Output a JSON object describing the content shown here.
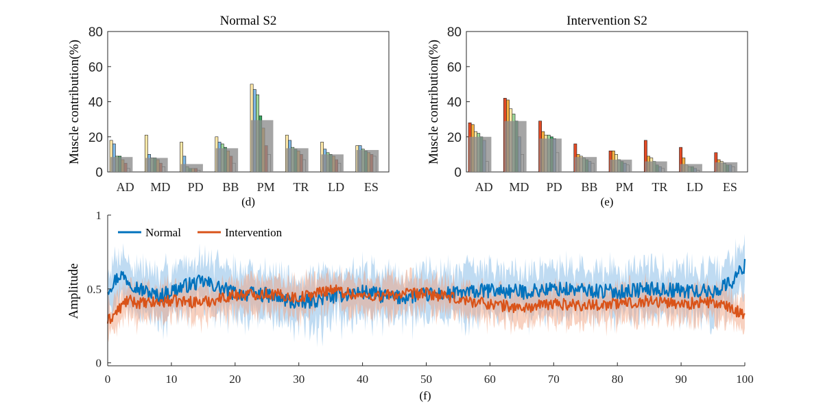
{
  "chart_data": [
    {
      "id": "d",
      "type": "bar",
      "title": "Normal S2",
      "caption": "(d)",
      "ylabel": "Muscle contribution(%)",
      "xlabel": "",
      "ylim": [
        0,
        80
      ],
      "yticks": [
        0,
        20,
        40,
        60,
        80
      ],
      "categories": [
        "AD",
        "MD",
        "PD",
        "BB",
        "PM",
        "TR",
        "LD",
        "ES"
      ],
      "group_mean": [
        8.5,
        8.0,
        4.5,
        13.5,
        29.5,
        13.5,
        10.0,
        12.5
      ],
      "bars": [
        [
          18,
          16,
          9,
          9,
          7,
          5,
          2
        ],
        [
          21,
          10,
          8,
          8,
          7,
          5,
          3
        ],
        [
          17,
          9,
          3,
          2,
          2,
          2,
          1
        ],
        [
          20,
          17,
          16,
          14,
          12,
          9,
          5
        ],
        [
          50,
          47,
          44,
          32,
          25,
          15,
          10
        ],
        [
          21,
          18,
          14,
          13,
          12,
          10,
          7
        ],
        [
          17,
          13,
          11,
          10,
          9,
          7,
          5
        ],
        [
          15,
          15,
          13,
          12,
          11,
          10,
          9
        ]
      ],
      "bar_colors": [
        "#FFE9A8",
        "#7FB8E6",
        "#9ED89A",
        "#35A35F",
        "#F5B041",
        "#E34B26",
        "#FFFFFF"
      ],
      "mean_color": "#8C8C8C"
    },
    {
      "id": "e",
      "type": "bar",
      "title": "Intervention S2",
      "caption": "(e)",
      "ylabel": "Muscle contribution(%)",
      "xlabel": "",
      "ylim": [
        0,
        80
      ],
      "yticks": [
        0,
        20,
        40,
        60,
        80
      ],
      "categories": [
        "AD",
        "MD",
        "PD",
        "BB",
        "PM",
        "TR",
        "LD",
        "ES"
      ],
      "group_mean": [
        20.0,
        29.0,
        19.0,
        8.5,
        7.0,
        6.0,
        4.5,
        5.5
      ],
      "bars": [
        [
          28,
          27,
          23,
          22,
          20,
          18,
          6
        ],
        [
          42,
          41,
          36,
          33,
          29,
          20,
          10
        ],
        [
          29,
          23,
          21,
          21,
          20,
          19,
          11
        ],
        [
          16,
          10,
          9,
          8,
          7,
          6,
          5
        ],
        [
          12,
          12,
          10,
          7,
          6,
          5,
          4
        ],
        [
          18,
          9,
          8,
          6,
          4,
          3,
          2
        ],
        [
          14,
          8,
          4,
          3,
          3,
          2,
          1
        ],
        [
          11,
          7,
          6,
          5,
          4,
          4,
          3
        ]
      ],
      "bar_colors": [
        "#E34B26",
        "#F5B041",
        "#FFE9A8",
        "#9ED89A",
        "#35A35F",
        "#7FB8E6",
        "#FFFFFF"
      ],
      "mean_color": "#8C8C8C"
    },
    {
      "id": "f",
      "type": "line",
      "title": "",
      "caption": "(f)",
      "ylabel": "Amplitude",
      "xlabel": "",
      "xlim": [
        0,
        100
      ],
      "xticks": [
        0,
        10,
        20,
        30,
        40,
        50,
        60,
        70,
        80,
        90,
        100
      ],
      "ylim": [
        -0.02,
        1.0
      ],
      "ytick_values": [
        0,
        0.5,
        1
      ],
      "ytick_labels": [
        "0",
        "0.5",
        "1"
      ],
      "legend_position": "top-left",
      "series": [
        {
          "name": "Normal",
          "color": "#0072BD",
          "band_color": "#7FB8E6",
          "anchors": {
            "x": [
              0,
              2,
              5,
              8,
              12,
              15,
              20,
              25,
              30,
              35,
              40,
              45,
              50,
              55,
              60,
              65,
              70,
              75,
              80,
              85,
              90,
              95,
              98,
              100
            ],
            "y": [
              0.5,
              0.6,
              0.5,
              0.45,
              0.52,
              0.55,
              0.47,
              0.46,
              0.4,
              0.45,
              0.48,
              0.44,
              0.46,
              0.47,
              0.49,
              0.48,
              0.5,
              0.49,
              0.48,
              0.5,
              0.49,
              0.48,
              0.55,
              0.66
            ]
          },
          "noise": 0.05,
          "band_width": 0.16
        },
        {
          "name": "Intervention",
          "color": "#D95319",
          "band_color": "#F2A482",
          "anchors": {
            "x": [
              0,
              3,
              6,
              10,
              15,
              20,
              25,
              30,
              35,
              40,
              45,
              50,
              55,
              60,
              65,
              70,
              75,
              80,
              85,
              90,
              95,
              100
            ],
            "y": [
              0.28,
              0.42,
              0.4,
              0.42,
              0.41,
              0.46,
              0.47,
              0.44,
              0.5,
              0.45,
              0.46,
              0.47,
              0.43,
              0.4,
              0.37,
              0.4,
              0.39,
              0.4,
              0.42,
              0.4,
              0.41,
              0.33
            ]
          },
          "noise": 0.04,
          "band_width": 0.11
        }
      ]
    }
  ]
}
